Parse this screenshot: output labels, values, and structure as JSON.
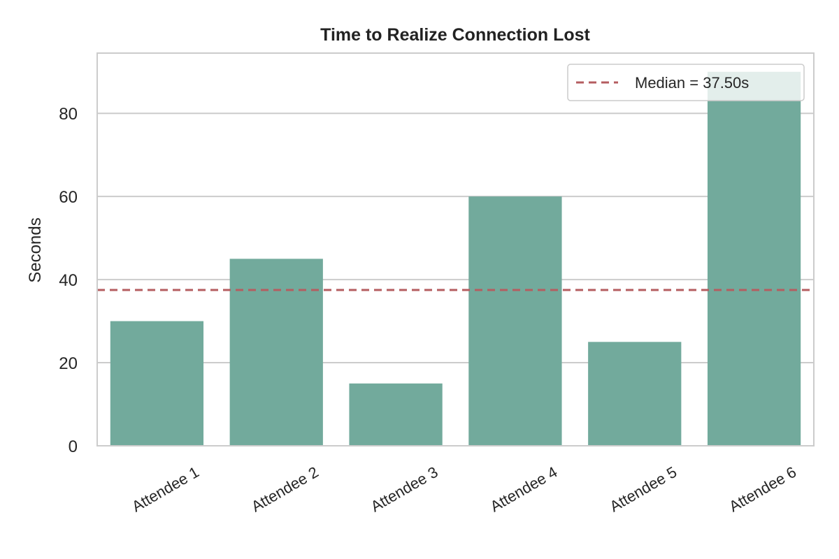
{
  "chart_data": {
    "type": "bar",
    "title": "Time to Realize Connection Lost",
    "xlabel": "",
    "ylabel": "Seconds",
    "categories": [
      "Attendee 1",
      "Attendee 2",
      "Attendee 3",
      "Attendee 4",
      "Attendee 5",
      "Attendee 6"
    ],
    "values": [
      30,
      45,
      15,
      60,
      25,
      90
    ],
    "ylim": [
      0,
      94.5
    ],
    "yticks": [
      0,
      20,
      40,
      60,
      80
    ],
    "grid": "horizontal",
    "reference_line": {
      "value": 37.5,
      "label": "Median = 37.50s",
      "style": "dashed"
    },
    "legend": {
      "placement": "top-right",
      "entries": [
        "Median = 37.50s"
      ]
    },
    "colors": {
      "bar": "#72aa9c",
      "median_line": "#b55d60",
      "grid": "#cccccc",
      "axes_edge": "#cccccc",
      "text": "#262626"
    }
  }
}
